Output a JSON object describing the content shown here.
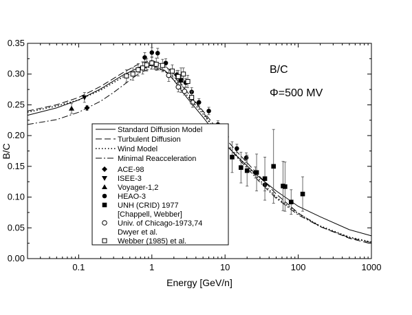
{
  "chart_data": {
    "type": "scatter",
    "title": "",
    "xlabel": "Energy [GeV/n]",
    "ylabel": "B/C",
    "xscale": "log",
    "xlim": [
      0.02,
      1000
    ],
    "ylim": [
      0.0,
      0.35
    ],
    "x_ticks": [
      {
        "value": 0.1,
        "label": "0.1"
      },
      {
        "value": 1,
        "label": "1"
      },
      {
        "value": 10,
        "label": "10"
      },
      {
        "value": 100,
        "label": "100"
      },
      {
        "value": 1000,
        "label": "1000"
      }
    ],
    "y_ticks": [
      {
        "value": 0.0,
        "label": "0.00"
      },
      {
        "value": 0.05,
        "label": "0.05"
      },
      {
        "value": 0.1,
        "label": "0.10"
      },
      {
        "value": 0.15,
        "label": "0.15"
      },
      {
        "value": 0.2,
        "label": "0.20"
      },
      {
        "value": 0.25,
        "label": "0.25"
      },
      {
        "value": 0.3,
        "label": "0.30"
      },
      {
        "value": 0.35,
        "label": "0.35"
      }
    ],
    "grid": false,
    "legend_position": "lower-left",
    "annotations": [
      "B/C",
      "Φ=500 MV"
    ],
    "curves": [
      {
        "name": "Standard Diffusion Model",
        "style": "solid",
        "x": [
          0.02,
          0.05,
          0.1,
          0.2,
          0.4,
          0.7,
          1,
          1.5,
          2,
          3,
          5,
          7,
          10,
          15,
          20,
          30,
          50,
          70,
          100,
          200,
          500,
          1000
        ],
        "y": [
          0.233,
          0.245,
          0.258,
          0.276,
          0.298,
          0.312,
          0.314,
          0.306,
          0.29,
          0.262,
          0.23,
          0.208,
          0.186,
          0.165,
          0.151,
          0.131,
          0.11,
          0.098,
          0.085,
          0.068,
          0.047,
          0.037
        ]
      },
      {
        "name": "Turbulent Diffusion",
        "style": "dashed",
        "x": [
          0.02,
          0.05,
          0.1,
          0.2,
          0.4,
          0.7,
          1,
          1.5,
          2,
          3,
          5,
          7,
          10,
          15,
          20,
          30,
          50,
          70,
          100,
          200,
          500,
          1000
        ],
        "y": [
          0.24,
          0.25,
          0.262,
          0.28,
          0.302,
          0.318,
          0.322,
          0.314,
          0.3,
          0.272,
          0.24,
          0.218,
          0.196,
          0.172,
          0.156,
          0.133,
          0.105,
          0.09,
          0.074,
          0.052,
          0.033,
          0.024
        ]
      },
      {
        "name": "Wind Model",
        "style": "dotted",
        "x": [
          0.02,
          0.05,
          0.1,
          0.2,
          0.4,
          0.7,
          1,
          1.5,
          2,
          3,
          5,
          7,
          10,
          15,
          20,
          30,
          50,
          70,
          100,
          200,
          500,
          1000
        ],
        "y": [
          0.238,
          0.248,
          0.258,
          0.274,
          0.295,
          0.309,
          0.312,
          0.305,
          0.291,
          0.266,
          0.235,
          0.213,
          0.19,
          0.165,
          0.15,
          0.127,
          0.1,
          0.087,
          0.073,
          0.053,
          0.035,
          0.027
        ]
      },
      {
        "name": "Minimal Reacceleration",
        "style": "dashdot",
        "x": [
          0.02,
          0.05,
          0.1,
          0.2,
          0.3,
          0.5,
          0.7,
          1,
          1.5,
          2,
          3,
          5,
          7,
          10,
          15,
          20,
          30,
          50,
          70,
          100,
          200,
          500,
          1000
        ],
        "y": [
          0.218,
          0.226,
          0.238,
          0.256,
          0.27,
          0.29,
          0.303,
          0.309,
          0.305,
          0.296,
          0.272,
          0.238,
          0.213,
          0.189,
          0.163,
          0.147,
          0.124,
          0.098,
          0.085,
          0.071,
          0.052,
          0.034,
          0.026
        ]
      }
    ],
    "series": [
      {
        "name": "ACE-98",
        "marker": "diamond-filled",
        "points": [
          {
            "x": 0.13,
            "y": 0.245,
            "err": 0.004
          }
        ]
      },
      {
        "name": "ISEE-3",
        "marker": "triangle-down-filled",
        "points": [
          {
            "x": 0.12,
            "y": 0.262,
            "err": 0.008
          }
        ]
      },
      {
        "name": "Voyager-1,2",
        "marker": "triangle-up-filled",
        "points": [
          {
            "x": 0.08,
            "y": 0.244,
            "err": 0.008
          }
        ]
      },
      {
        "name": "HEAO-3",
        "marker": "circle-filled",
        "points": [
          {
            "x": 0.8,
            "y": 0.327,
            "err": 0.008
          },
          {
            "x": 1.0,
            "y": 0.335,
            "err": 0.008
          },
          {
            "x": 1.2,
            "y": 0.334,
            "err": 0.008
          },
          {
            "x": 1.55,
            "y": 0.318,
            "err": 0.007
          },
          {
            "x": 2.2,
            "y": 0.299,
            "err": 0.007
          },
          {
            "x": 2.9,
            "y": 0.286,
            "err": 0.007
          },
          {
            "x": 3.5,
            "y": 0.271,
            "err": 0.007
          },
          {
            "x": 4.4,
            "y": 0.254,
            "err": 0.006
          },
          {
            "x": 6.0,
            "y": 0.24,
            "err": 0.006
          },
          {
            "x": 8.0,
            "y": 0.218,
            "err": 0.006
          },
          {
            "x": 10.5,
            "y": 0.198,
            "err": 0.006
          },
          {
            "x": 14.5,
            "y": 0.179,
            "err": 0.007
          },
          {
            "x": 19.5,
            "y": 0.164,
            "err": 0.008
          },
          {
            "x": 26.0,
            "y": 0.14,
            "err": 0.009
          },
          {
            "x": 35.0,
            "y": 0.12,
            "err": 0.01
          }
        ]
      },
      {
        "name": "UNH (CRID) 1977 [Chappell, Webber]",
        "marker": "square-filled",
        "points": [
          {
            "x": 2.5,
            "y": 0.29,
            "err": 0.02
          },
          {
            "x": 10.0,
            "y": 0.192,
            "err": 0.02
          },
          {
            "x": 12.5,
            "y": 0.165,
            "err": 0.025
          },
          {
            "x": 16.5,
            "y": 0.148,
            "err": 0.025
          },
          {
            "x": 20.0,
            "y": 0.143,
            "err": 0.025
          },
          {
            "x": 27.0,
            "y": 0.14,
            "err": 0.03
          },
          {
            "x": 35.0,
            "y": 0.13,
            "err": 0.035
          },
          {
            "x": 46.0,
            "y": 0.15,
            "err": 0.06
          },
          {
            "x": 62.0,
            "y": 0.118,
            "err": 0.04
          },
          {
            "x": 66.0,
            "y": 0.117,
            "err": 0.04
          },
          {
            "x": 80.0,
            "y": 0.092,
            "err": 0.02
          },
          {
            "x": 115.0,
            "y": 0.105,
            "err": 0.028
          }
        ]
      },
      {
        "name": "Univ. of Chicago-1973,74 Dwyer et al.",
        "marker": "circle-open",
        "points": [
          {
            "x": 1.7,
            "y": 0.298,
            "err": 0.01
          },
          {
            "x": 2.3,
            "y": 0.279,
            "err": 0.008
          },
          {
            "x": 2.8,
            "y": 0.272,
            "err": 0.006
          },
          {
            "x": 3.6,
            "y": 0.254,
            "err": 0.008
          }
        ]
      },
      {
        "name": "Webber (1985) et al.",
        "marker": "square-open",
        "points": [
          {
            "x": 0.45,
            "y": 0.297,
            "err": 0.01
          },
          {
            "x": 0.55,
            "y": 0.3,
            "err": 0.01
          },
          {
            "x": 0.65,
            "y": 0.307,
            "err": 0.01
          },
          {
            "x": 0.75,
            "y": 0.31,
            "err": 0.01
          },
          {
            "x": 0.85,
            "y": 0.315,
            "err": 0.01
          },
          {
            "x": 1.0,
            "y": 0.318,
            "err": 0.01
          },
          {
            "x": 1.15,
            "y": 0.316,
            "err": 0.01
          },
          {
            "x": 1.4,
            "y": 0.314,
            "err": 0.01
          },
          {
            "x": 1.9,
            "y": 0.305,
            "err": 0.01
          },
          {
            "x": 2.3,
            "y": 0.296,
            "err": 0.01
          },
          {
            "x": 2.7,
            "y": 0.3,
            "err": 0.01
          },
          {
            "x": 3.1,
            "y": 0.288,
            "err": 0.01
          },
          {
            "x": 3.5,
            "y": 0.262,
            "err": 0.01
          }
        ]
      }
    ],
    "legend": [
      {
        "label": "Standard Diffusion Model",
        "kind": "line",
        "style": "solid"
      },
      {
        "label": "Turbulent Diffusion",
        "kind": "line",
        "style": "dashed"
      },
      {
        "label": "Wind Model",
        "kind": "line",
        "style": "dotted"
      },
      {
        "label": "Minimal Reacceleration",
        "kind": "line",
        "style": "dashdot"
      },
      {
        "label": "ACE-98",
        "kind": "marker",
        "marker": "diamond-filled"
      },
      {
        "label": "ISEE-3",
        "kind": "marker",
        "marker": "triangle-down-filled"
      },
      {
        "label": "Voyager-1,2",
        "kind": "marker",
        "marker": "triangle-up-filled"
      },
      {
        "label": "HEAO-3",
        "kind": "marker",
        "marker": "circle-filled"
      },
      {
        "label": "UNH (CRID) 1977",
        "kind": "marker",
        "marker": "square-filled"
      },
      {
        "label": "[Chappell, Webber]",
        "kind": "text"
      },
      {
        "label": "Univ. of Chicago-1973,74",
        "kind": "marker",
        "marker": "circle-open"
      },
      {
        "label": "Dwyer et al.",
        "kind": "text"
      },
      {
        "label": "Webber (1985) et al.",
        "kind": "marker",
        "marker": "square-open"
      }
    ]
  }
}
